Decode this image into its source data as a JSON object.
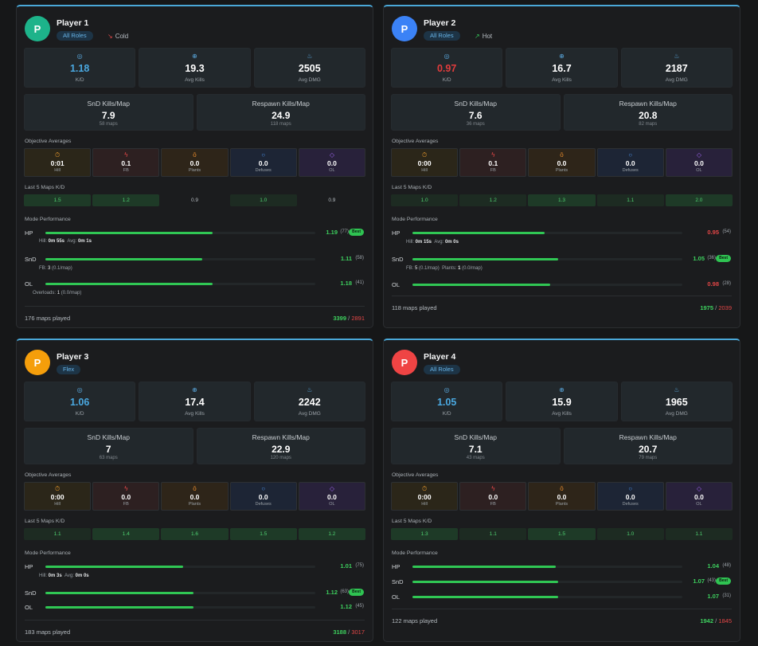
{
  "players": [
    {
      "initial": "P",
      "name": "Player 1",
      "role": "All Roles",
      "avatar_color": "#1db38a",
      "trend": {
        "label": "Cold",
        "icon": "trend-down-icon"
      },
      "kd": "1.18",
      "avg_kills": "19.3",
      "avg_dmg": "2505",
      "labels": {
        "kd": "K/D",
        "avg_kills": "Avg Kills",
        "avg_dmg": "Avg DMG"
      },
      "snd_kpm": {
        "title": "SnD Kills/Map",
        "value": "7.9",
        "sub": "58 maps"
      },
      "resp_kpm": {
        "title": "Respawn Kills/Map",
        "value": "24.9",
        "sub": "118 maps"
      },
      "objectives_title": "Objective Averages",
      "objectives": [
        {
          "value": "0:01",
          "label": "Hill"
        },
        {
          "value": "0.1",
          "label": "FB"
        },
        {
          "value": "0.0",
          "label": "Plants"
        },
        {
          "value": "0.0",
          "label": "Defuses"
        },
        {
          "value": "0.0",
          "label": "OL"
        }
      ],
      "last5_title": "Last 5 Maps K/D",
      "last5": [
        "1.5",
        "1.2",
        "0.9",
        "1.0",
        "0.9"
      ],
      "mode_title": "Mode Performance",
      "modes": [
        {
          "name": "HP",
          "kd": "1.19",
          "count": "(77)",
          "best": "Best",
          "pct": 0.62
        },
        {
          "name": "SnD",
          "kd": "1.11",
          "count": "(58)",
          "pct": 0.58
        },
        {
          "name": "OL",
          "kd": "1.18",
          "count": "(41)",
          "pct": 0.62
        }
      ],
      "details": {
        "hp": {
          "hill_label": "Hill:",
          "hill": "0m 55s",
          "avg_label": "Avg:",
          "avg": "0m 1s"
        },
        "snd": {
          "fb_label": "FB:",
          "fb": "3",
          "fb_rate": "(0.1/map)"
        },
        "ol": {
          "label": "Overloads:",
          "value": "1",
          "rate": "(0.0/map)"
        }
      },
      "maps_played": "176 maps played",
      "wins": "3399",
      "sep": "/",
      "losses": "2891"
    },
    {
      "initial": "P",
      "name": "Player 2",
      "role": "All Roles",
      "avatar_color": "#3b82f6",
      "trend": {
        "label": "Hot",
        "icon": "trend-up-icon"
      },
      "kd": "0.97",
      "avg_kills": "16.7",
      "avg_dmg": "2187",
      "labels": {
        "kd": "K/D",
        "avg_kills": "Avg Kills",
        "avg_dmg": "Avg DMG"
      },
      "snd_kpm": {
        "title": "SnD Kills/Map",
        "value": "7.6",
        "sub": "36 maps"
      },
      "resp_kpm": {
        "title": "Respawn Kills/Map",
        "value": "20.8",
        "sub": "82 maps"
      },
      "objectives_title": "Objective Averages",
      "objectives": [
        {
          "value": "0:00",
          "label": "Hill"
        },
        {
          "value": "0.1",
          "label": "FB"
        },
        {
          "value": "0.0",
          "label": "Plants"
        },
        {
          "value": "0.0",
          "label": "Defuses"
        },
        {
          "value": "0.0",
          "label": "OL"
        }
      ],
      "last5_title": "Last 5 Maps K/D",
      "last5": [
        "1.0",
        "1.2",
        "1.3",
        "1.1",
        "2.0"
      ],
      "mode_title": "Mode Performance",
      "modes": [
        {
          "name": "HP",
          "kd": "0.95",
          "count": "(54)",
          "pct": 0.49
        },
        {
          "name": "SnD",
          "kd": "1.05",
          "count": "(36)",
          "best": "Best",
          "pct": 0.54
        },
        {
          "name": "OL",
          "kd": "0.98",
          "count": "(28)",
          "pct": 0.51
        }
      ],
      "details": {
        "hp": {
          "hill_label": "Hill:",
          "hill": "0m 15s",
          "avg_label": "Avg:",
          "avg": "0m 0s"
        },
        "snd": {
          "fb_label": "FB:",
          "fb": "5",
          "fb_rate": "(0.1/map)",
          "plants_label": "Plants:",
          "plants": "1",
          "plants_rate": "(0.0/map)"
        }
      },
      "maps_played": "118 maps played",
      "wins": "1975",
      "sep": "/",
      "losses": "2039"
    },
    {
      "initial": "P",
      "name": "Player 3",
      "role": "Flex",
      "avatar_color": "#f59e0b",
      "kd": "1.06",
      "avg_kills": "17.4",
      "avg_dmg": "2242",
      "labels": {
        "kd": "K/D",
        "avg_kills": "Avg Kills",
        "avg_dmg": "Avg DMG"
      },
      "snd_kpm": {
        "title": "SnD Kills/Map",
        "value": "7",
        "sub": "63 maps"
      },
      "resp_kpm": {
        "title": "Respawn Kills/Map",
        "value": "22.9",
        "sub": "120 maps"
      },
      "objectives_title": "Objective Averages",
      "objectives": [
        {
          "value": "0:00",
          "label": "Hill"
        },
        {
          "value": "0.0",
          "label": "FB"
        },
        {
          "value": "0.0",
          "label": "Plants"
        },
        {
          "value": "0.0",
          "label": "Defuses"
        },
        {
          "value": "0.0",
          "label": "OL"
        }
      ],
      "last5_title": "Last 5 Maps K/D",
      "last5": [
        "1.1",
        "1.4",
        "1.6",
        "1.5",
        "1.2"
      ],
      "mode_title": "Mode Performance",
      "modes": [
        {
          "name": "HP",
          "kd": "1.01",
          "count": "(75)",
          "pct": 0.51
        },
        {
          "name": "SnD",
          "kd": "1.12",
          "count": "(63)",
          "best": "Best",
          "pct": 0.55
        },
        {
          "name": "OL",
          "kd": "1.12",
          "count": "(45)",
          "pct": 0.55
        }
      ],
      "details": {
        "hp": {
          "hill_label": "Hill:",
          "hill": "0m 3s",
          "avg_label": "Avg:",
          "avg": "0m 0s"
        }
      },
      "maps_played": "183 maps played",
      "wins": "3188",
      "sep": "/",
      "losses": "3017"
    },
    {
      "initial": "P",
      "name": "Player 4",
      "role": "All Roles",
      "avatar_color": "#ef4444",
      "kd": "1.05",
      "avg_kills": "15.9",
      "avg_dmg": "1965",
      "labels": {
        "kd": "K/D",
        "avg_kills": "Avg Kills",
        "avg_dmg": "Avg DMG"
      },
      "snd_kpm": {
        "title": "SnD Kills/Map",
        "value": "7.1",
        "sub": "43 maps"
      },
      "resp_kpm": {
        "title": "Respawn Kills/Map",
        "value": "20.7",
        "sub": "79 maps"
      },
      "objectives_title": "Objective Averages",
      "objectives": [
        {
          "value": "0:00",
          "label": "Hill"
        },
        {
          "value": "0.0",
          "label": "FB"
        },
        {
          "value": "0.0",
          "label": "Plants"
        },
        {
          "value": "0.0",
          "label": "Defuses"
        },
        {
          "value": "0.0",
          "label": "OL"
        }
      ],
      "last5_title": "Last 5 Maps K/D",
      "last5": [
        "1.3",
        "1.1",
        "1.5",
        "1.0",
        "1.1"
      ],
      "mode_title": "Mode Performance",
      "modes": [
        {
          "name": "HP",
          "kd": "1.04",
          "count": "(48)",
          "pct": 0.53
        },
        {
          "name": "SnD",
          "kd": "1.07",
          "count": "(43)",
          "best": "Best",
          "pct": 0.54
        },
        {
          "name": "OL",
          "kd": "1.07",
          "count": "(31)",
          "pct": 0.54
        }
      ],
      "details": {},
      "maps_played": "122 maps played",
      "wins": "1942",
      "sep": "/",
      "losses": "1845"
    }
  ],
  "icons": {
    "kd": "target-icon",
    "avg_kills": "crosshair-icon",
    "avg_dmg": "flame-icon",
    "hill": "stopwatch-icon",
    "fb": "lightning-icon",
    "plants": "bomb-icon",
    "defuses": "shield-icon",
    "ol": "diamond-icon"
  },
  "colors": {
    "accent": "#4aa8d8",
    "win": "#3dcf5e",
    "loss": "#e24646",
    "kd_good": "#4aa8e0",
    "kd_bad": "#e23c3c"
  }
}
